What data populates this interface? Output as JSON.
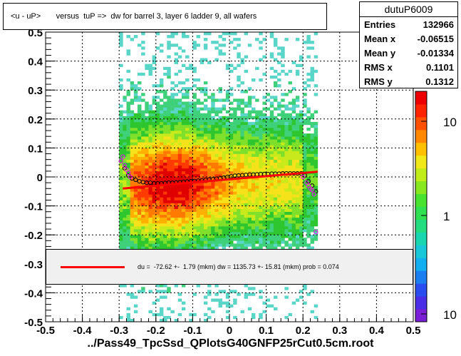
{
  "title": "<u - uP>       versus  tuP =>  dw for barrel 3, layer 6 ladder 9, all wafers",
  "stats": {
    "name": "dutuP6009",
    "rows": [
      {
        "key": "Entries",
        "value": "132966"
      },
      {
        "key": "Mean x",
        "value": "-0.06515"
      },
      {
        "key": "Mean y",
        "value": "-0.01334"
      },
      {
        "key": "RMS x",
        "value": "0.1101"
      },
      {
        "key": "RMS y",
        "value": "0.1312"
      }
    ]
  },
  "fit_text": "du =  -72.62 +-  1.79 (mkm) dw = 1135.73 +- 15.81 (mkm) prob = 0.074",
  "colors": {
    "fit": "#ff0000",
    "profile_black": "#000000",
    "profile_magenta": "#ff00ff"
  },
  "chart_data": {
    "type": "heatmap",
    "xlabel": "../Pass49_TpcSsd_QPlotsG40GNFP25rCut0.5cm.root",
    "xlim": [
      -0.5,
      0.5
    ],
    "ylim": [
      -0.5,
      0.5
    ],
    "xticks": [
      "-0.5",
      "-0.4",
      "-0.3",
      "-0.2",
      "-0.1",
      "0",
      "0.1",
      "0.2",
      "0.3",
      "0.4",
      "0.5"
    ],
    "yticks": [
      "-0.5",
      "-0.4",
      "-0.3",
      "-0.2",
      "-0.1",
      "0",
      "0.1",
      "0.2",
      "0.3",
      "0.4",
      "0.5"
    ],
    "grid": true,
    "colorbar_labels": [
      "10",
      "1",
      "10"
    ],
    "profile_black": {
      "x": [
        -0.285,
        -0.275,
        -0.265,
        -0.255,
        -0.245,
        -0.235,
        -0.225,
        -0.215,
        -0.205,
        -0.195,
        -0.185,
        -0.175,
        -0.165,
        -0.155,
        -0.145,
        -0.135,
        -0.125,
        -0.115,
        -0.105,
        -0.095,
        -0.085,
        -0.075,
        -0.065,
        -0.055,
        -0.045,
        -0.035,
        -0.025,
        -0.015,
        -0.005,
        0.005,
        0.015,
        0.025,
        0.035,
        0.045,
        0.055,
        0.065,
        0.075,
        0.085,
        0.095,
        0.105,
        0.115,
        0.125,
        0.135,
        0.145,
        0.155,
        0.165,
        0.175,
        0.185,
        0.195,
        0.205,
        0.215,
        0.225,
        0.235
      ],
      "y": [
        0.03,
        0.005,
        -0.005,
        -0.01,
        -0.015,
        -0.018,
        -0.02,
        -0.02,
        -0.022,
        -0.022,
        -0.022,
        -0.021,
        -0.02,
        -0.02,
        -0.019,
        -0.018,
        -0.017,
        -0.016,
        -0.015,
        -0.014,
        -0.013,
        -0.012,
        -0.01,
        -0.009,
        -0.008,
        -0.006,
        -0.004,
        -0.002,
        0.0,
        0.002,
        0.004,
        0.005,
        0.006,
        0.007,
        0.008,
        0.008,
        0.009,
        0.01,
        0.01,
        0.01,
        0.011,
        0.011,
        0.011,
        0.012,
        0.012,
        0.012,
        0.012,
        0.012,
        0.012,
        0.005,
        -0.015,
        -0.03,
        -0.05
      ]
    },
    "profile_magenta": {
      "x": [
        -0.295,
        -0.29,
        -0.285,
        -0.28,
        -0.275,
        -0.27,
        0.2,
        0.21,
        0.215,
        0.22,
        0.225,
        0.23,
        0.235
      ],
      "y": [
        0.055,
        0.07,
        0.04,
        0.025,
        0.015,
        0.0,
        0.0,
        -0.02,
        -0.03,
        -0.04,
        -0.045,
        -0.06,
        -0.19
      ]
    },
    "fit_line": {
      "x": [
        -0.29,
        0.24
      ],
      "y": [
        -0.04,
        0.018
      ]
    },
    "density_note_levels": [
      "low",
      "mid",
      "high"
    ]
  }
}
